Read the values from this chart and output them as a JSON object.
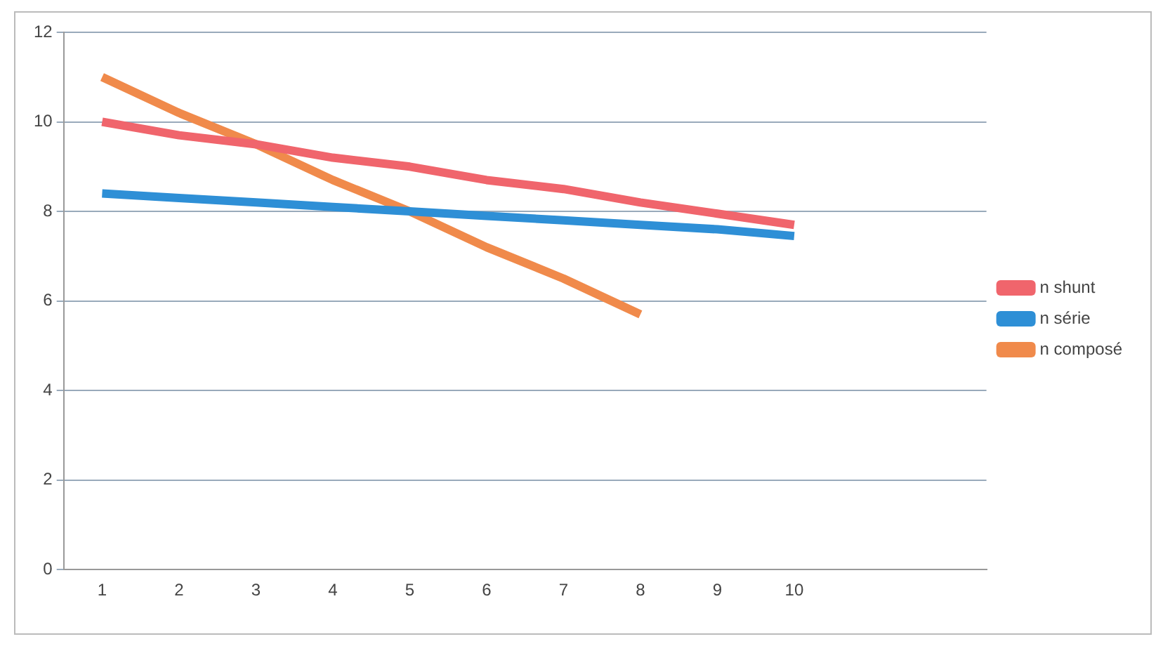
{
  "chart_data": {
    "type": "line",
    "categories": [
      "1",
      "2",
      "3",
      "4",
      "5",
      "6",
      "7",
      "8",
      "9",
      "10",
      null,
      null
    ],
    "series": [
      {
        "name": "n shunt",
        "color": "#f0656c",
        "values": [
          10,
          9.7,
          9.5,
          9.2,
          9.0,
          8.7,
          8.5,
          8.2,
          7.95,
          7.7,
          null,
          null
        ]
      },
      {
        "name": "n série",
        "color": "#2e8fd6",
        "values": [
          8.4,
          8.3,
          8.2,
          8.1,
          8.0,
          7.9,
          7.8,
          7.7,
          7.6,
          7.45,
          null,
          null
        ]
      },
      {
        "name": "n composé",
        "color": "#f08a4b",
        "values": [
          11,
          10.2,
          9.5,
          8.7,
          8.0,
          7.2,
          6.5,
          5.7,
          null,
          null,
          null,
          null
        ]
      }
    ],
    "ylim": [
      0,
      12
    ],
    "yticks": [
      0,
      2,
      4,
      6,
      8,
      10,
      12
    ],
    "grid": "y",
    "legend": "right",
    "marker": "none",
    "line_style": "solid"
  }
}
